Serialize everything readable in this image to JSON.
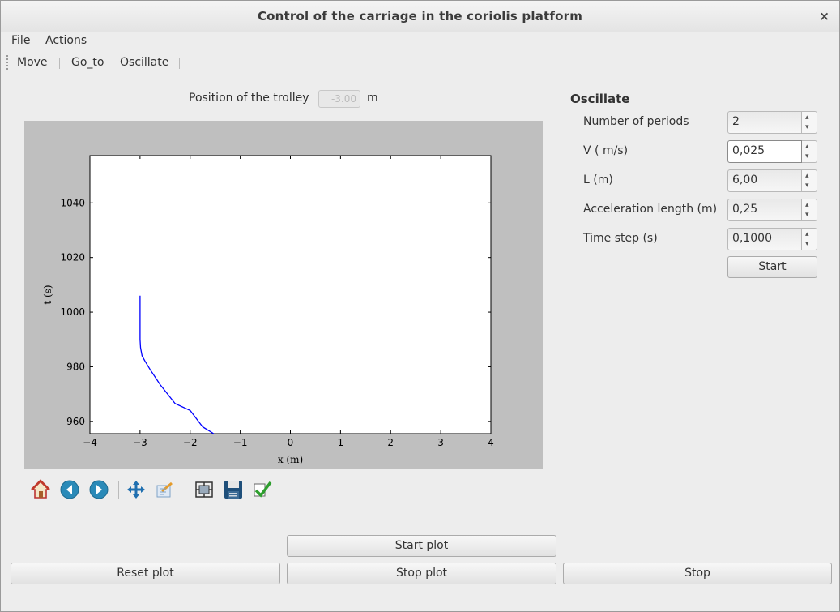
{
  "window": {
    "title": "Control of the carriage in the coriolis platform",
    "close_glyph": "×"
  },
  "menu": [
    "File",
    "Actions"
  ],
  "toolbar": [
    "Move",
    "Go_to",
    "Oscillate"
  ],
  "trolley": {
    "label": "Position of the trolley",
    "value": "-3.00",
    "unit": "m"
  },
  "chart_data": {
    "type": "line",
    "xlabel": "x (m)",
    "ylabel": "t (s)",
    "xlim": [
      -4,
      4
    ],
    "ylim": [
      955.5,
      1057.3
    ],
    "xticks": [
      "−4",
      "−3",
      "−2",
      "−1",
      "0",
      "1",
      "2",
      "3",
      "4"
    ],
    "yticks": [
      "960",
      "980",
      "1000",
      "1020",
      "1040"
    ],
    "series": [
      {
        "color": "#0000ff",
        "x": [
          -3.0,
          -3.0,
          -2.99,
          -2.96,
          -2.9,
          -2.8,
          -2.6,
          -2.3,
          -2.0,
          -1.75,
          -1.53
        ],
        "y": [
          1006,
          990,
          987,
          984,
          982,
          979,
          973.5,
          966.5,
          964,
          958,
          955.5
        ]
      }
    ]
  },
  "plot_toolbar_icons": [
    "home-icon",
    "back-icon",
    "forward-icon",
    "pan-icon",
    "zoom-icon",
    "configure-subplots-icon",
    "save-icon",
    "edit-check-icon"
  ],
  "oscillate": {
    "title": "Oscillate",
    "fields": [
      {
        "label": "Number of periods",
        "value": "2"
      },
      {
        "label": "V ( m/s)",
        "value": "0,025"
      },
      {
        "label": "L (m)",
        "value": "6,00"
      },
      {
        "label": "Acceleration length (m)",
        "value": "0,25"
      },
      {
        "label": "Time step (s)",
        "value": "0,1000"
      }
    ],
    "start_label": "Start"
  },
  "buttons": {
    "start_plot": "Start plot",
    "reset_plot": "Reset plot",
    "stop_plot": "Stop plot",
    "stop": "Stop"
  }
}
